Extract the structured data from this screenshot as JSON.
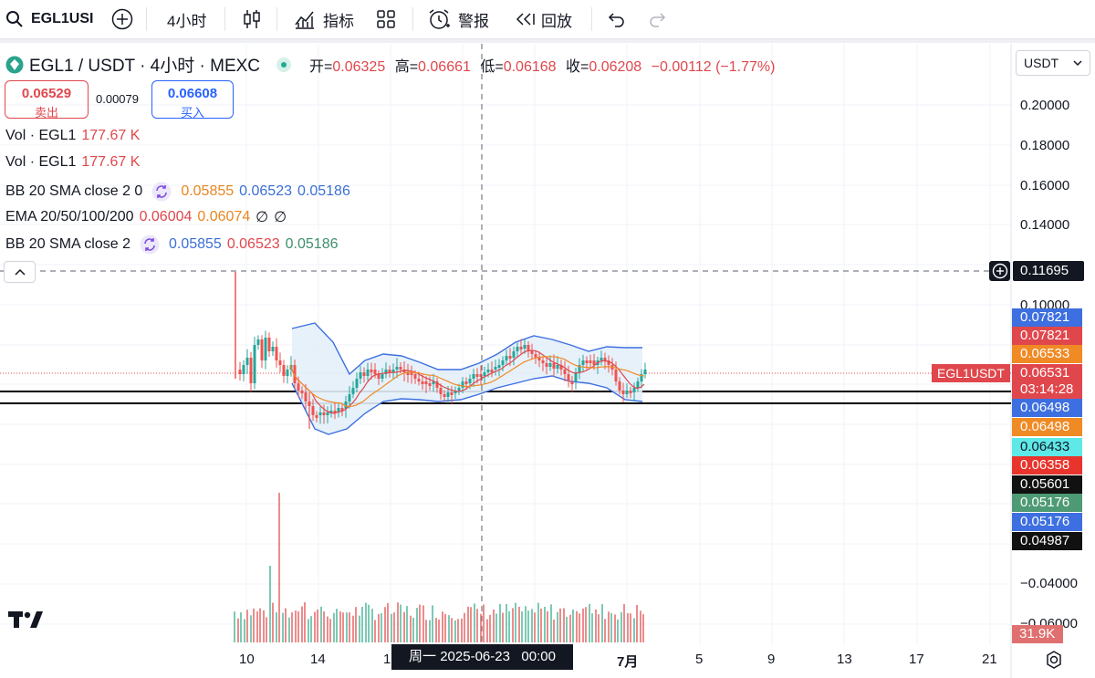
{
  "toolbar": {
    "symbol": "EGL1USI",
    "interval": "4小时",
    "indicators": "指标",
    "alert": "警报",
    "replay": "回放"
  },
  "legend": {
    "title": "EGL1 / USDT · 4小时 · MEXC",
    "open_label": "开=",
    "open": "0.06325",
    "high_label": "高=",
    "high": "0.06661",
    "low_label": "低=",
    "low": "0.06168",
    "close_label": "收=",
    "close": "0.06208",
    "change": "−0.00112 (−1.77%)"
  },
  "trade": {
    "sell_price": "0.06529",
    "sell_label": "卖出",
    "spread": "0.00079",
    "buy_price": "0.06608",
    "buy_label": "买入"
  },
  "indicators": [
    {
      "name": "Vol · EGL1",
      "values": [
        "177.67 K"
      ]
    },
    {
      "name": "Vol · EGL1",
      "values": [
        "177.67 K"
      ]
    },
    {
      "name": "BB 20 SMA close 2 0",
      "values": [
        "0.05855",
        "0.06523",
        "0.05186"
      ]
    },
    {
      "name": "EMA 20/50/100/200",
      "values": [
        "0.06004",
        "0.06074",
        "∅",
        "∅"
      ]
    },
    {
      "name": "BB 20 SMA close 2",
      "values": [
        "0.05855",
        "0.06523",
        "0.05186"
      ]
    }
  ],
  "currency_select": "USDT",
  "price_axis": [
    "0.20000",
    "0.18000",
    "0.16000",
    "0.14000",
    "0.10000",
    "−0.04000",
    "−0.06000"
  ],
  "crosshair_price": "0.11695",
  "symbol_tag": "EGL1USDT",
  "price_tags": [
    {
      "value": "0.07821",
      "color": "#3d6fe0"
    },
    {
      "value": "0.07821",
      "color": "#e0474c"
    },
    {
      "value": "0.06533",
      "color": "#f08a24"
    },
    {
      "value": "0.06531",
      "color": "#e0474c"
    },
    {
      "value": "03:14:28",
      "color": "#e0474c"
    },
    {
      "value": "0.06498",
      "color": "#3d6fe0"
    },
    {
      "value": "0.06498",
      "color": "#f08a24"
    },
    {
      "value": "0.06433",
      "color": "#5ee8e8"
    },
    {
      "value": "0.06358",
      "color": "#e8342c"
    },
    {
      "value": "0.05601",
      "color": "#111111"
    },
    {
      "value": "0.05176",
      "color": "#4e9a74"
    },
    {
      "value": "0.05176",
      "color": "#3d6fe0"
    },
    {
      "value": "0.04987",
      "color": "#111111"
    }
  ],
  "volume_tag": "31.9K",
  "x_axis": [
    "10",
    "14",
    "1",
    "7月",
    "5",
    "9",
    "13",
    "17",
    "21"
  ],
  "crosshair_time": "周一 2025-06-23   00:00",
  "logo": "TV"
}
